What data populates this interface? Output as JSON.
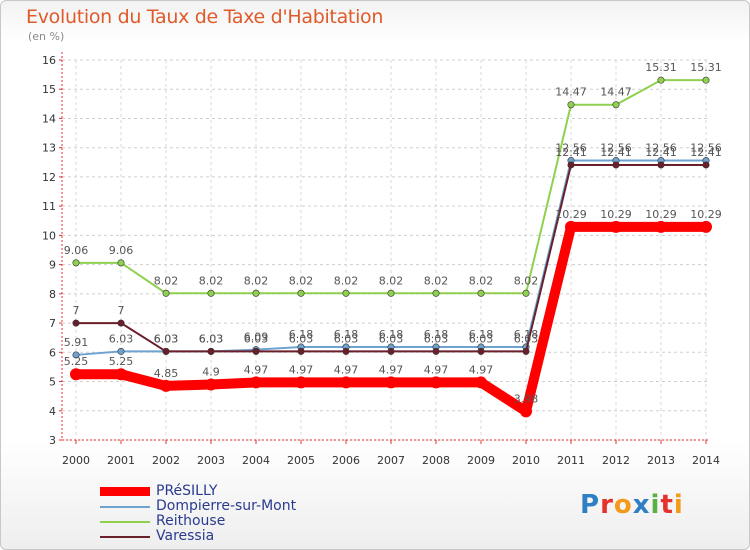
{
  "chart_data": {
    "type": "line",
    "title": "Evolution du Taux de Taxe d'Habitation",
    "subtitle": "(en %)",
    "xlabel": "",
    "ylabel": "",
    "ylim": [
      3,
      16
    ],
    "yticks": [
      3,
      4,
      5,
      6,
      7,
      8,
      9,
      10,
      11,
      12,
      13,
      14,
      15,
      16
    ],
    "categories": [
      "2000",
      "2001",
      "2002",
      "2003",
      "2004",
      "2005",
      "2006",
      "2007",
      "2008",
      "2009",
      "2010",
      "2011",
      "2012",
      "2013",
      "2014"
    ],
    "legend_position": "bottom-left",
    "series": [
      {
        "name": "Reithouse",
        "color": "#8fd14f",
        "values": [
          9.06,
          9.06,
          8.02,
          8.02,
          8.02,
          8.02,
          8.02,
          8.02,
          8.02,
          8.02,
          8.02,
          14.47,
          14.47,
          15.31,
          15.31
        ],
        "labels": [
          "9.06",
          "9.06",
          "8.02",
          "8.02",
          "8.02",
          "8.02",
          "8.02",
          "8.02",
          "8.02",
          "8.02",
          "8.02",
          "14.47",
          "14.47",
          "15.31",
          "15.31"
        ]
      },
      {
        "name": "Dompierre-sur-Mont",
        "color": "#6fa3cf",
        "values": [
          5.91,
          6.03,
          6.03,
          6.03,
          6.09,
          6.18,
          6.18,
          6.18,
          6.18,
          6.18,
          6.18,
          12.56,
          12.56,
          12.56,
          12.56
        ],
        "labels": [
          "5.91",
          "6.03",
          "6.03",
          "6.03",
          "6.09",
          "6.18",
          "6.18",
          "6.18",
          "6.18",
          "6.18",
          "6.18",
          "12.56",
          "12.56",
          "12.56",
          "12.56"
        ]
      },
      {
        "name": "Varessia",
        "color": "#6b1f2a",
        "values": [
          7,
          7,
          6.03,
          6.03,
          6.03,
          6.03,
          6.03,
          6.03,
          6.03,
          6.03,
          6.03,
          12.41,
          12.41,
          12.41,
          12.41
        ],
        "labels": [
          "7",
          "7",
          "6.03",
          "6.03",
          "6.03",
          "6.03",
          "6.03",
          "6.03",
          "6.03",
          "6.03",
          "6.03",
          "12.41",
          "12.41",
          "12.41",
          "12.41"
        ]
      },
      {
        "name": "PRéSILLY",
        "color": "#ff0000",
        "values": [
          5.25,
          5.25,
          4.85,
          4.9,
          4.97,
          4.97,
          4.97,
          4.97,
          4.97,
          4.97,
          3.98,
          10.29,
          10.29,
          10.29,
          10.29
        ],
        "labels": [
          "5.25",
          "5.25",
          "4.85",
          "4.9",
          "4.97",
          "4.97",
          "4.97",
          "4.97",
          "4.97",
          "4.97",
          "3.98",
          "10.29",
          "10.29",
          "10.29",
          "10.29"
        ]
      }
    ],
    "legend": [
      {
        "name": "PRéSILLY",
        "color": "#ff0000"
      },
      {
        "name": "Dompierre-sur-Mont",
        "color": "#6fa3cf"
      },
      {
        "name": "Reithouse",
        "color": "#8fd14f"
      },
      {
        "name": "Varessia",
        "color": "#6b1f2a"
      }
    ]
  },
  "brand": {
    "letters": [
      "P",
      "r",
      "o",
      "x",
      "i",
      "t",
      "i"
    ]
  }
}
